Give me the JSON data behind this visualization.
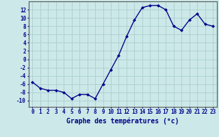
{
  "x": [
    0,
    1,
    2,
    3,
    4,
    5,
    6,
    7,
    8,
    9,
    10,
    11,
    12,
    13,
    14,
    15,
    16,
    17,
    18,
    19,
    20,
    21,
    22,
    23
  ],
  "y": [
    -5.5,
    -7,
    -7.5,
    -7.5,
    -8,
    -9.5,
    -8.5,
    -8.5,
    -9.5,
    -6,
    -2.5,
    1,
    5.5,
    9.5,
    12.5,
    13,
    13,
    12,
    8,
    7,
    9.5,
    11,
    8.5,
    8
  ],
  "line_color": "#00008B",
  "marker": "D",
  "marker_size": 2.0,
  "linewidth": 1.0,
  "bg_color": "#cce8e8",
  "grid_color": "#aacece",
  "xlabel": "Graphe des températures (°c)",
  "xlabel_fontsize": 7,
  "xlabel_color": "#00008B",
  "ytick_labels": [
    "12",
    "10",
    "8",
    "6",
    "4",
    "2",
    "0",
    "-2",
    "-4",
    "-6",
    "-8",
    "-10"
  ],
  "ytick_vals": [
    12,
    10,
    8,
    6,
    4,
    2,
    0,
    -2,
    -4,
    -6,
    -8,
    -10
  ],
  "ylim": [
    -11.5,
    14.0
  ],
  "xlim": [
    -0.5,
    23.5
  ],
  "xticks": [
    0,
    1,
    2,
    3,
    4,
    5,
    6,
    7,
    8,
    9,
    10,
    11,
    12,
    13,
    14,
    15,
    16,
    17,
    18,
    19,
    20,
    21,
    22,
    23
  ],
  "tick_fontsize": 5.5,
  "tick_color": "#00008B"
}
